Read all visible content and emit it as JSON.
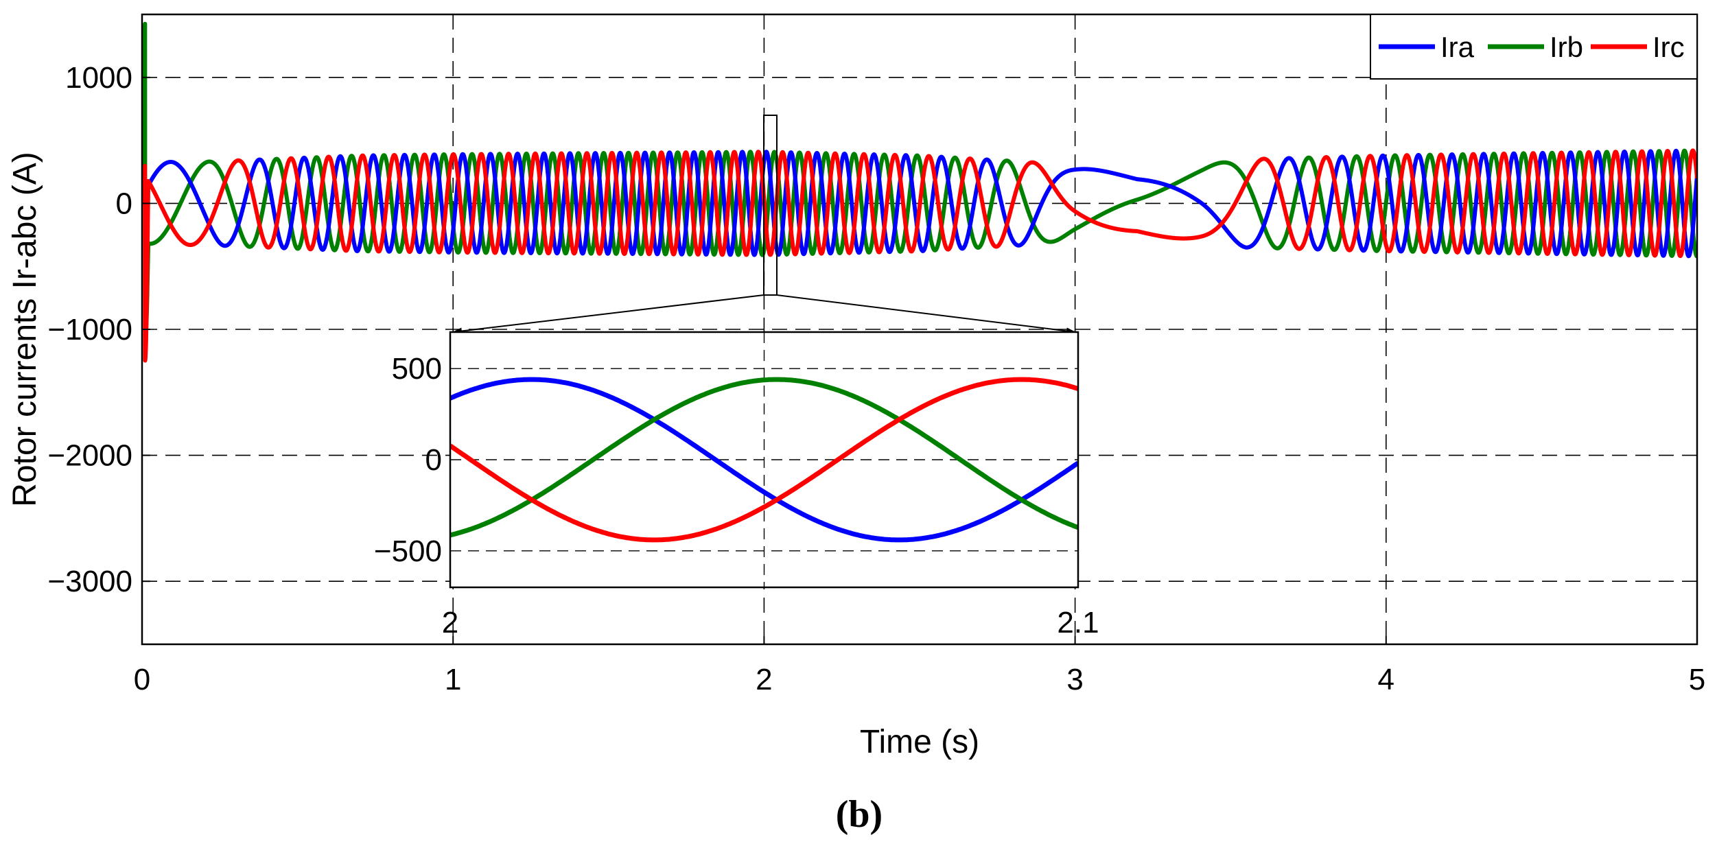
{
  "figure": {
    "caption": "(b)"
  },
  "chart_data": [
    {
      "type": "line",
      "panel": "main",
      "xlabel": "Time (s)",
      "ylabel": "Rotor currents Ir-abc (A)",
      "xlim": [
        0,
        5
      ],
      "ylim": [
        -3500,
        1500
      ],
      "xticks": [
        0,
        1,
        2,
        3,
        4,
        5
      ],
      "xtick_labels": [
        "0",
        "1",
        "2",
        "3",
        "4",
        "5"
      ],
      "yticks": [
        1000,
        0,
        -1000,
        -2000,
        -3000
      ],
      "ytick_labels": [
        "1000",
        "0",
        "−1000",
        "−2000",
        "−3000"
      ],
      "grid": true,
      "grid_style": "dashed",
      "legend": {
        "placement": "top-right",
        "orientation": "horizontal"
      },
      "series": [
        {
          "name": "Ira",
          "color": "#0000ff",
          "x": [
            0,
            0.02,
            0.1,
            0.2,
            0.3,
            0.4,
            0.5,
            0.7,
            1.0,
            1.5,
            2.0,
            2.5,
            2.7,
            2.85,
            3.0,
            3.2,
            3.4,
            3.55,
            3.7,
            4.0,
            4.5,
            5.0
          ],
          "amplitude": [
            0,
            320,
            330,
            330,
            340,
            350,
            360,
            380,
            390,
            400,
            410,
            380,
            350,
            330,
            280,
            240,
            300,
            350,
            360,
            380,
            400,
            420
          ],
          "frequency_hz": [
            0,
            2.5,
            2.5,
            2.8,
            4,
            6,
            8,
            9.5,
            11,
            12.5,
            13,
            9,
            6,
            3.5,
            1,
            0.5,
            0.9,
            2.5,
            5,
            8.5,
            11,
            12.5
          ]
        },
        {
          "name": "Irb",
          "color": "#008000",
          "x": [
            0,
            0.02,
            0.1,
            0.2,
            0.3,
            0.4,
            0.5,
            0.7,
            1.0,
            1.5,
            2.0,
            2.5,
            2.7,
            2.85,
            3.0,
            3.2,
            3.4,
            3.55,
            3.7,
            4.0,
            4.5,
            5.0
          ],
          "amplitude": [
            0,
            320,
            330,
            330,
            340,
            350,
            360,
            380,
            390,
            400,
            410,
            380,
            350,
            330,
            280,
            240,
            300,
            350,
            360,
            380,
            400,
            420
          ],
          "frequency_hz": [
            0,
            2.5,
            2.5,
            2.8,
            4,
            6,
            8,
            9.5,
            11,
            12.5,
            13,
            9,
            6,
            3.5,
            1,
            0.5,
            0.9,
            2.5,
            5,
            8.5,
            11,
            12.5
          ],
          "transient_peak": {
            "min": -1000,
            "max": 1500
          }
        },
        {
          "name": "Irc",
          "color": "#ff0000",
          "x": [
            0,
            0.02,
            0.1,
            0.2,
            0.3,
            0.4,
            0.5,
            0.7,
            1.0,
            1.5,
            2.0,
            2.5,
            2.7,
            2.85,
            3.0,
            3.2,
            3.4,
            3.55,
            3.7,
            4.0,
            4.5,
            5.0
          ],
          "amplitude": [
            0,
            320,
            330,
            330,
            340,
            350,
            360,
            380,
            390,
            400,
            410,
            380,
            350,
            330,
            280,
            240,
            300,
            350,
            360,
            380,
            400,
            420
          ],
          "frequency_hz": [
            0,
            2.5,
            2.5,
            2.8,
            4,
            6,
            8,
            9.5,
            11,
            12.5,
            13,
            9,
            6,
            3.5,
            1,
            0.5,
            0.9,
            2.5,
            5,
            8.5,
            11,
            12.5
          ],
          "transient_peak": {
            "min": -1300,
            "max": 250
          }
        }
      ]
    },
    {
      "type": "line",
      "panel": "inset",
      "zoom_of_main_x": [
        2.0,
        2.1
      ],
      "xlim": [
        2.0,
        2.1
      ],
      "ylim": [
        -700,
        700
      ],
      "xticks": [
        2.0,
        2.1
      ],
      "xtick_labels": [
        "2",
        "2.1"
      ],
      "yticks": [
        500,
        0,
        -500
      ],
      "ytick_labels": [
        "500",
        "0",
        "−500"
      ],
      "grid": true,
      "series": [
        {
          "name": "Ira",
          "color": "#0000ff",
          "amplitude": 440,
          "phase_deg": 50,
          "period_s": 0.117
        },
        {
          "name": "Irb",
          "color": "#008000",
          "amplitude": 440,
          "phase_deg": 290,
          "period_s": 0.117
        },
        {
          "name": "Irc",
          "color": "#ff0000",
          "amplitude": 440,
          "phase_deg": 170,
          "period_s": 0.117
        }
      ]
    }
  ]
}
